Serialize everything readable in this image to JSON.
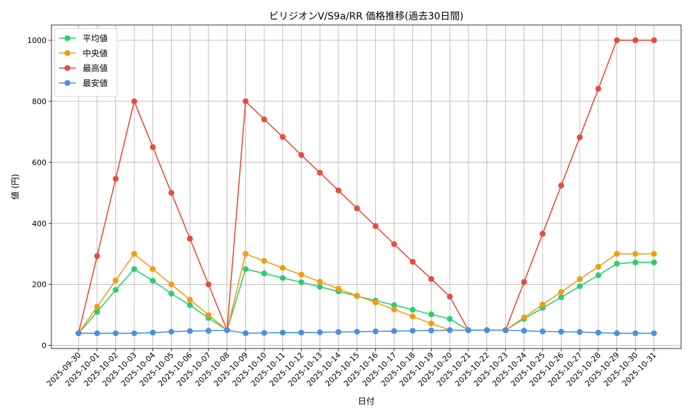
{
  "chart_data": {
    "type": "line",
    "title": "ビリジオンV/S9a/RR 価格推移(過去30日間)",
    "xlabel": "日付",
    "ylabel": "値 (円)",
    "ylim": [
      -10,
      1050
    ],
    "yticks": [
      0,
      200,
      400,
      600,
      800,
      1000
    ],
    "grid": true,
    "legend_position": "top-left",
    "categories": [
      "2025-09-30",
      "2025-10-01",
      "2025-10-02",
      "2025-10-03",
      "2025-10-04",
      "2025-10-05",
      "2025-10-06",
      "2025-10-07",
      "2025-10-08",
      "2025-10-09",
      "2025-10-10",
      "2025-10-11",
      "2025-10-12",
      "2025-10-13",
      "2025-10-14",
      "2025-10-15",
      "2025-10-16",
      "2025-10-17",
      "2025-10-18",
      "2025-10-19",
      "2025-10-20",
      "2025-10-21",
      "2025-10-22",
      "2025-10-23",
      "2025-10-24",
      "2025-10-25",
      "2025-10-26",
      "2025-10-27",
      "2025-10-28",
      "2025-10-29",
      "2025-10-30",
      "2025-10-31"
    ],
    "series": [
      {
        "name": "平均値",
        "color": "#2ecc71",
        "values": [
          40,
          110,
          182,
          250,
          212,
          170,
          132,
          90,
          50,
          250,
          236,
          221,
          207,
          192,
          177,
          162,
          147,
          132,
          117,
          102,
          87,
          50,
          50,
          50,
          87,
          123,
          158,
          194,
          230,
          268,
          272,
          272
        ]
      },
      {
        "name": "中央値",
        "color": "#f39c12",
        "values": [
          40,
          127,
          213,
          300,
          250,
          200,
          150,
          100,
          50,
          300,
          277,
          254,
          232,
          209,
          186,
          163,
          141,
          118,
          95,
          72,
          50,
          50,
          50,
          50,
          92,
          134,
          175,
          217,
          258,
          300,
          300,
          300
        ]
      },
      {
        "name": "最高値",
        "color": "#e74c3c",
        "values": [
          40,
          293,
          546,
          800,
          650,
          500,
          350,
          200,
          50,
          800,
          741,
          683,
          624,
          566,
          508,
          449,
          391,
          332,
          274,
          218,
          160,
          50,
          50,
          50,
          208,
          366,
          524,
          682,
          841,
          1000,
          1000,
          1000
        ]
      },
      {
        "name": "最安値",
        "color": "#4a90e2",
        "values": [
          40,
          40,
          40,
          40,
          42,
          45,
          47,
          48,
          50,
          40,
          41,
          42,
          42,
          43,
          44,
          45,
          46,
          47,
          48,
          49,
          50,
          50,
          50,
          50,
          48,
          46,
          45,
          44,
          42,
          40,
          40,
          40
        ]
      }
    ]
  }
}
